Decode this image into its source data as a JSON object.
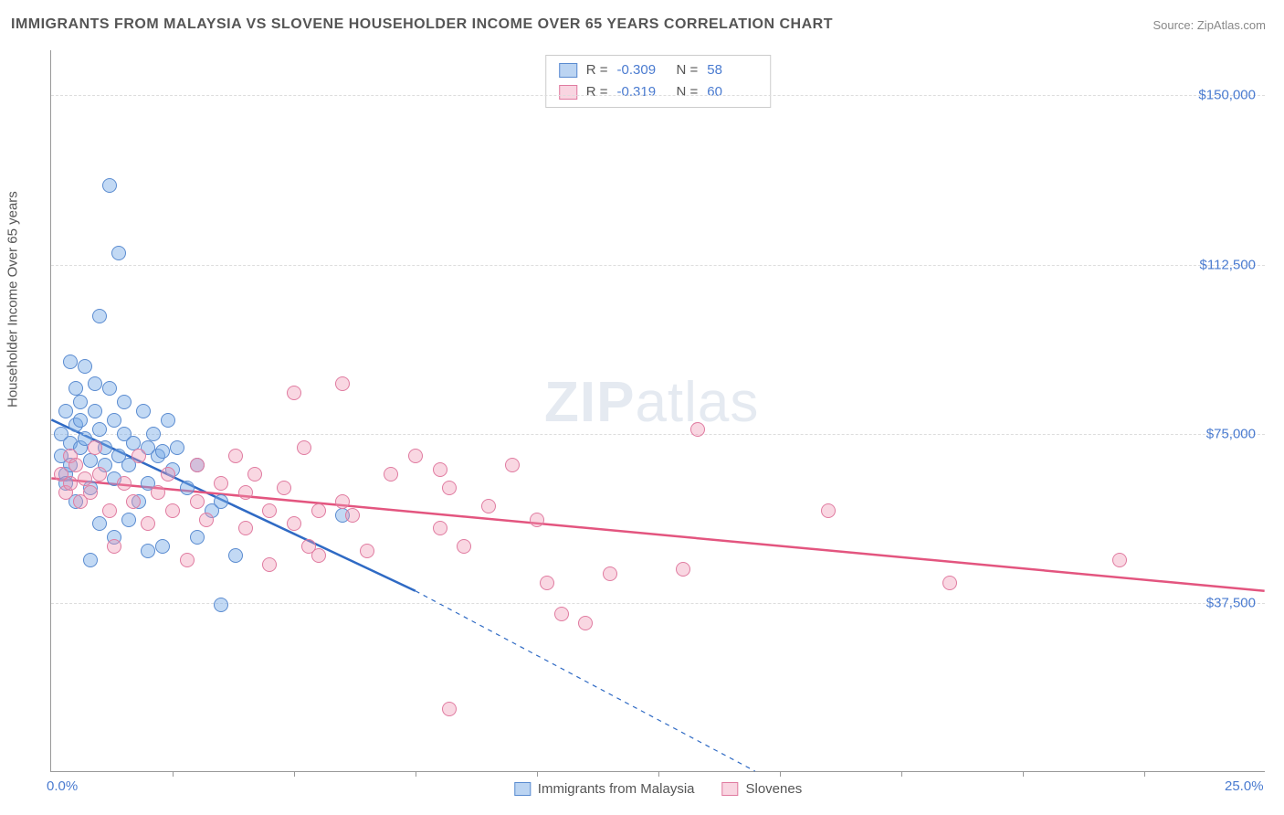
{
  "title": "IMMIGRANTS FROM MALAYSIA VS SLOVENE HOUSEHOLDER INCOME OVER 65 YEARS CORRELATION CHART",
  "source_prefix": "Source: ",
  "source": "ZipAtlas.com",
  "watermark_bold": "ZIP",
  "watermark_light": "atlas",
  "chart": {
    "type": "scatter",
    "yaxis_title": "Householder Income Over 65 years",
    "xlim": [
      0,
      25
    ],
    "ylim": [
      0,
      160000
    ],
    "background_color": "#ffffff",
    "grid_color": "#dddddd",
    "axis_color": "#999999",
    "tick_label_color": "#4a7bd0",
    "tick_fontsize": 15,
    "title_fontsize": 16,
    "marker_radius": 8,
    "marker_stroke_width": 1.5,
    "trend_stroke_width": 2.5,
    "yticks": [
      {
        "v": 37500,
        "label": "$37,500"
      },
      {
        "v": 75000,
        "label": "$75,000"
      },
      {
        "v": 112500,
        "label": "$112,500"
      },
      {
        "v": 150000,
        "label": "$150,000"
      }
    ],
    "xticks_minor": [
      2.5,
      5,
      7.5,
      10,
      12.5,
      15,
      17.5,
      20,
      22.5
    ],
    "xtick_labels": [
      {
        "v": 0,
        "label": "0.0%"
      },
      {
        "v": 25,
        "label": "25.0%"
      }
    ],
    "series": [
      {
        "name": "Immigrants from Malaysia",
        "fill": "rgba(120,170,230,0.45)",
        "stroke": "#5a8bd0",
        "R": "-0.309",
        "N": "58",
        "trend": {
          "x1": 0,
          "y1": 78000,
          "x2": 7.5,
          "y2": 40000,
          "color": "#2f6ac4",
          "dash_x2": 14.5,
          "dash_y2": 0
        },
        "points": [
          [
            0.2,
            75000
          ],
          [
            0.2,
            70000
          ],
          [
            0.3,
            66000
          ],
          [
            0.3,
            64000
          ],
          [
            0.3,
            80000
          ],
          [
            0.4,
            91000
          ],
          [
            0.4,
            68000
          ],
          [
            0.4,
            73000
          ],
          [
            0.5,
            77000
          ],
          [
            0.5,
            85000
          ],
          [
            0.5,
            60000
          ],
          [
            0.6,
            72000
          ],
          [
            0.6,
            78000
          ],
          [
            0.6,
            82000
          ],
          [
            0.7,
            90000
          ],
          [
            0.7,
            74000
          ],
          [
            0.8,
            69000
          ],
          [
            0.8,
            63000
          ],
          [
            0.9,
            80000
          ],
          [
            0.9,
            86000
          ],
          [
            1.0,
            101000
          ],
          [
            1.0,
            76000
          ],
          [
            1.1,
            72000
          ],
          [
            1.1,
            68000
          ],
          [
            1.2,
            85000
          ],
          [
            1.2,
            130000
          ],
          [
            1.3,
            78000
          ],
          [
            1.3,
            65000
          ],
          [
            1.4,
            115000
          ],
          [
            1.4,
            70000
          ],
          [
            1.5,
            82000
          ],
          [
            1.5,
            75000
          ],
          [
            1.6,
            68000
          ],
          [
            1.7,
            73000
          ],
          [
            1.8,
            60000
          ],
          [
            1.9,
            80000
          ],
          [
            2.0,
            72000
          ],
          [
            2.0,
            64000
          ],
          [
            2.1,
            75000
          ],
          [
            2.2,
            70000
          ],
          [
            2.3,
            50000
          ],
          [
            2.4,
            78000
          ],
          [
            2.5,
            67000
          ],
          [
            2.6,
            72000
          ],
          [
            2.8,
            63000
          ],
          [
            3.0,
            52000
          ],
          [
            3.0,
            68000
          ],
          [
            3.3,
            58000
          ],
          [
            3.5,
            60000
          ],
          [
            3.5,
            37000
          ],
          [
            3.8,
            48000
          ],
          [
            0.8,
            47000
          ],
          [
            1.0,
            55000
          ],
          [
            1.3,
            52000
          ],
          [
            1.6,
            56000
          ],
          [
            2.0,
            49000
          ],
          [
            2.3,
            71000
          ],
          [
            6.0,
            57000
          ]
        ]
      },
      {
        "name": "Slovenes",
        "fill": "rgba(240,150,180,0.38)",
        "stroke": "#e07ba0",
        "R": "-0.319",
        "N": "60",
        "trend": {
          "x1": 0,
          "y1": 65000,
          "x2": 25,
          "y2": 40000,
          "color": "#e3557f"
        },
        "points": [
          [
            0.2,
            66000
          ],
          [
            0.3,
            62000
          ],
          [
            0.4,
            70000
          ],
          [
            0.4,
            64000
          ],
          [
            0.5,
            68000
          ],
          [
            0.6,
            60000
          ],
          [
            0.7,
            65000
          ],
          [
            0.8,
            62000
          ],
          [
            0.9,
            72000
          ],
          [
            1.0,
            66000
          ],
          [
            1.2,
            58000
          ],
          [
            1.3,
            50000
          ],
          [
            1.5,
            64000
          ],
          [
            1.7,
            60000
          ],
          [
            1.8,
            70000
          ],
          [
            2.0,
            55000
          ],
          [
            2.2,
            62000
          ],
          [
            2.4,
            66000
          ],
          [
            2.5,
            58000
          ],
          [
            2.8,
            47000
          ],
          [
            3.0,
            68000
          ],
          [
            3.0,
            60000
          ],
          [
            3.2,
            56000
          ],
          [
            3.5,
            64000
          ],
          [
            3.8,
            70000
          ],
          [
            4.0,
            62000
          ],
          [
            4.0,
            54000
          ],
          [
            4.2,
            66000
          ],
          [
            4.5,
            58000
          ],
          [
            4.8,
            63000
          ],
          [
            5.0,
            84000
          ],
          [
            5.0,
            55000
          ],
          [
            5.3,
            50000
          ],
          [
            5.5,
            48000
          ],
          [
            5.5,
            58000
          ],
          [
            6.0,
            86000
          ],
          [
            6.0,
            60000
          ],
          [
            6.2,
            57000
          ],
          [
            6.5,
            49000
          ],
          [
            7.0,
            66000
          ],
          [
            7.5,
            70000
          ],
          [
            8.0,
            67000
          ],
          [
            8.0,
            54000
          ],
          [
            8.2,
            63000
          ],
          [
            8.5,
            50000
          ],
          [
            8.2,
            14000
          ],
          [
            9.0,
            59000
          ],
          [
            9.5,
            68000
          ],
          [
            10.0,
            56000
          ],
          [
            10.5,
            35000
          ],
          [
            10.2,
            42000
          ],
          [
            11.0,
            33000
          ],
          [
            11.5,
            44000
          ],
          [
            13.3,
            76000
          ],
          [
            13.0,
            45000
          ],
          [
            16.0,
            58000
          ],
          [
            18.5,
            42000
          ],
          [
            22.0,
            47000
          ],
          [
            5.2,
            72000
          ],
          [
            4.5,
            46000
          ]
        ]
      }
    ],
    "legend_top": {
      "R_label": "R =",
      "N_label": "N ="
    },
    "legend_bottom": [
      {
        "label": "Immigrants from Malaysia",
        "fill": "rgba(120,170,230,0.5)",
        "stroke": "#5a8bd0"
      },
      {
        "label": "Slovenes",
        "fill": "rgba(240,150,180,0.4)",
        "stroke": "#e07ba0"
      }
    ]
  }
}
